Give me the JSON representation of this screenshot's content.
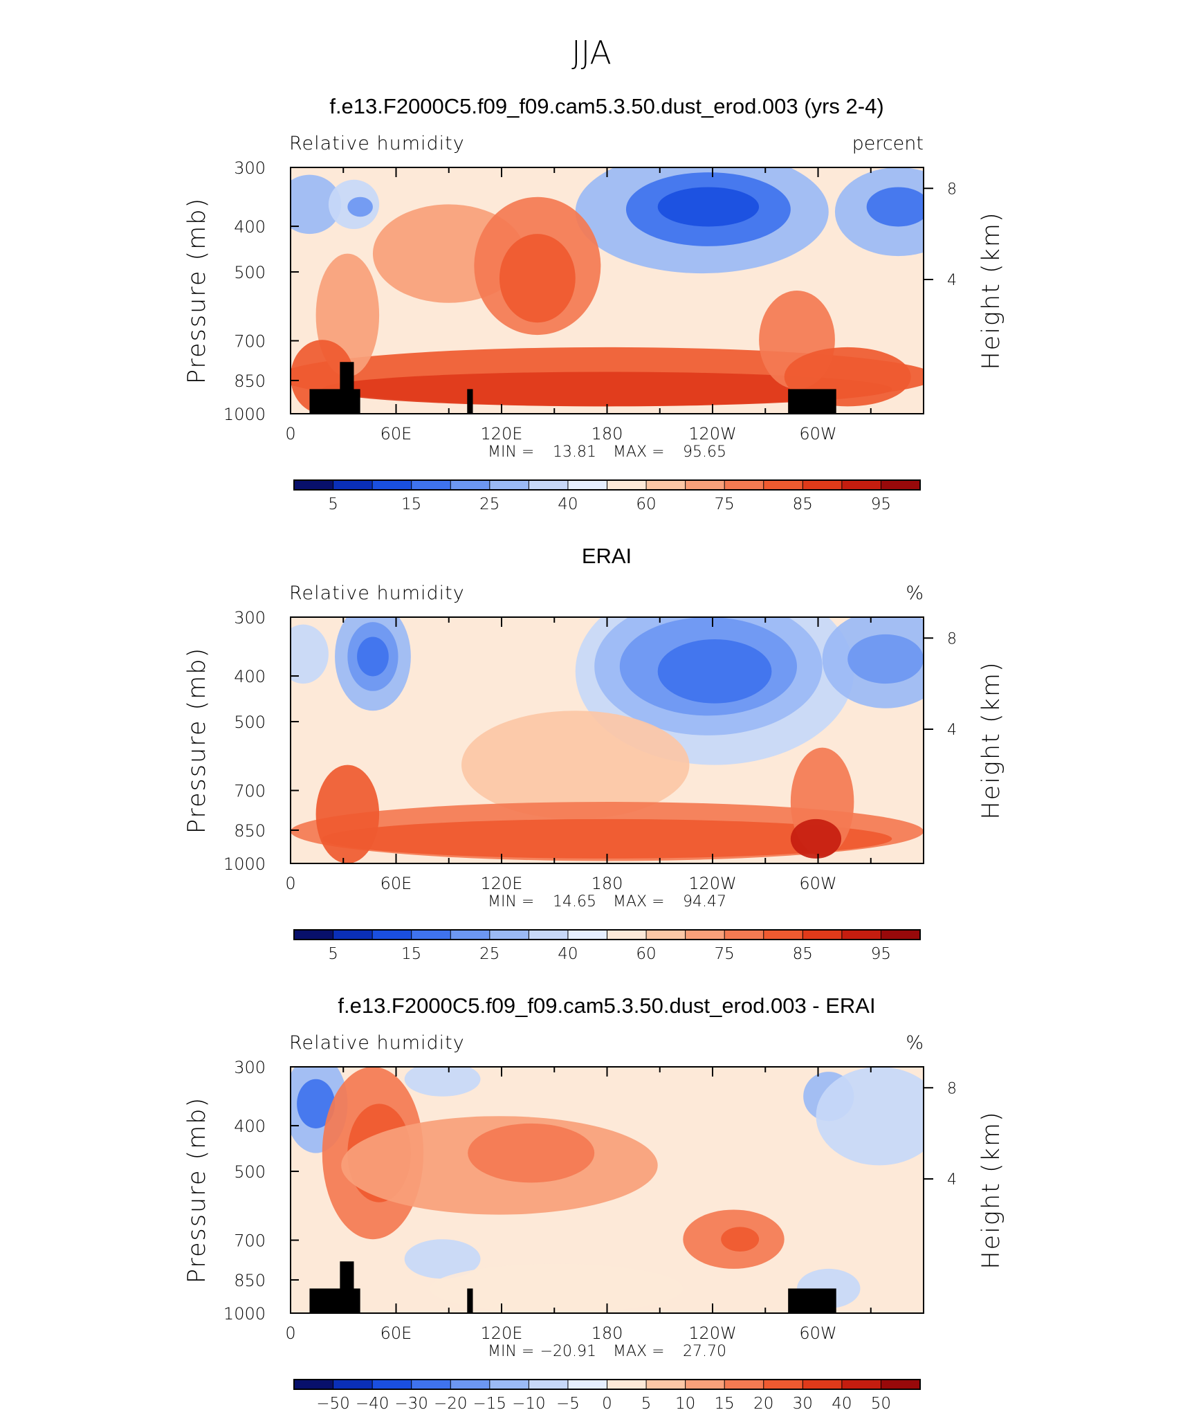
{
  "page_title": "JJA",
  "chart_data": [
    {
      "type": "heatmap",
      "title": "f.e13.F2000C5.f09_f09.cam5.3.50.dust_erod.003 (yrs 2-4)",
      "left_label": "Relative humidity",
      "right_label": "percent",
      "ylabel": "Pressure (mb)",
      "y2label": "Height (km)",
      "xticks": [
        "0",
        "60E",
        "120E",
        "180",
        "120W",
        "60W"
      ],
      "yticks": [
        "300",
        "400",
        "500",
        "700",
        "850",
        "1000"
      ],
      "y2ticks": [
        "8",
        "4"
      ],
      "stats": {
        "min_label": "MIN =",
        "min": "13.81",
        "max_label": "MAX =",
        "max": "95.65"
      },
      "colorbar_labels": [
        "5",
        "15",
        "25",
        "40",
        "60",
        "75",
        "85",
        "95"
      ],
      "colors": [
        "#08106b",
        "#0a2fb8",
        "#1a4fe0",
        "#3f73ee",
        "#6c97f2",
        "#9bbaf5",
        "#c7d8f8",
        "#e6efff",
        "#fde9d8",
        "#fcc7a6",
        "#f9a07a",
        "#f47a52",
        "#ef5a30",
        "#e03a1a",
        "#c51d0f",
        "#98090a"
      ]
    },
    {
      "type": "heatmap",
      "title": "ERAI",
      "left_label": "Relative humidity",
      "right_label": "%",
      "ylabel": "Pressure (mb)",
      "y2label": "Height (km)",
      "xticks": [
        "0",
        "60E",
        "120E",
        "180",
        "120W",
        "60W"
      ],
      "yticks": [
        "300",
        "400",
        "500",
        "700",
        "850",
        "1000"
      ],
      "y2ticks": [
        "8",
        "4"
      ],
      "stats": {
        "min_label": "MIN =",
        "min": "14.65",
        "max_label": "MAX =",
        "max": "94.47"
      },
      "colorbar_labels": [
        "5",
        "15",
        "25",
        "40",
        "60",
        "75",
        "85",
        "95"
      ],
      "colors": [
        "#08106b",
        "#0a2fb8",
        "#1a4fe0",
        "#3f73ee",
        "#6c97f2",
        "#9bbaf5",
        "#c7d8f8",
        "#e6efff",
        "#fde9d8",
        "#fcc7a6",
        "#f9a07a",
        "#f47a52",
        "#ef5a30",
        "#e03a1a",
        "#c51d0f",
        "#98090a"
      ]
    },
    {
      "type": "heatmap",
      "title": "f.e13.F2000C5.f09_f09.cam5.3.50.dust_erod.003 - ERAI",
      "left_label": "Relative humidity",
      "right_label": "%",
      "ylabel": "Pressure (mb)",
      "y2label": "Height (km)",
      "xticks": [
        "0",
        "60E",
        "120E",
        "180",
        "120W",
        "60W"
      ],
      "yticks": [
        "300",
        "400",
        "500",
        "700",
        "850",
        "1000"
      ],
      "y2ticks": [
        "8",
        "4"
      ],
      "stats": {
        "min_label": "MIN =",
        "min": "−20.91",
        "max_label": "MAX =",
        "max": "27.70"
      },
      "colorbar_labels": [
        "−50",
        "−40",
        "−30",
        "−20",
        "−15",
        "−10",
        "−5",
        "0",
        "5",
        "10",
        "15",
        "20",
        "30",
        "40",
        "50"
      ],
      "colors": [
        "#08106b",
        "#0a2fb8",
        "#1a4fe0",
        "#3f73ee",
        "#6c97f2",
        "#9bbaf5",
        "#c7d8f8",
        "#e6efff",
        "#fde9d8",
        "#fcc7a6",
        "#f9a07a",
        "#f47a52",
        "#ef5a30",
        "#e03a1a",
        "#c51d0f",
        "#98090a"
      ]
    }
  ]
}
